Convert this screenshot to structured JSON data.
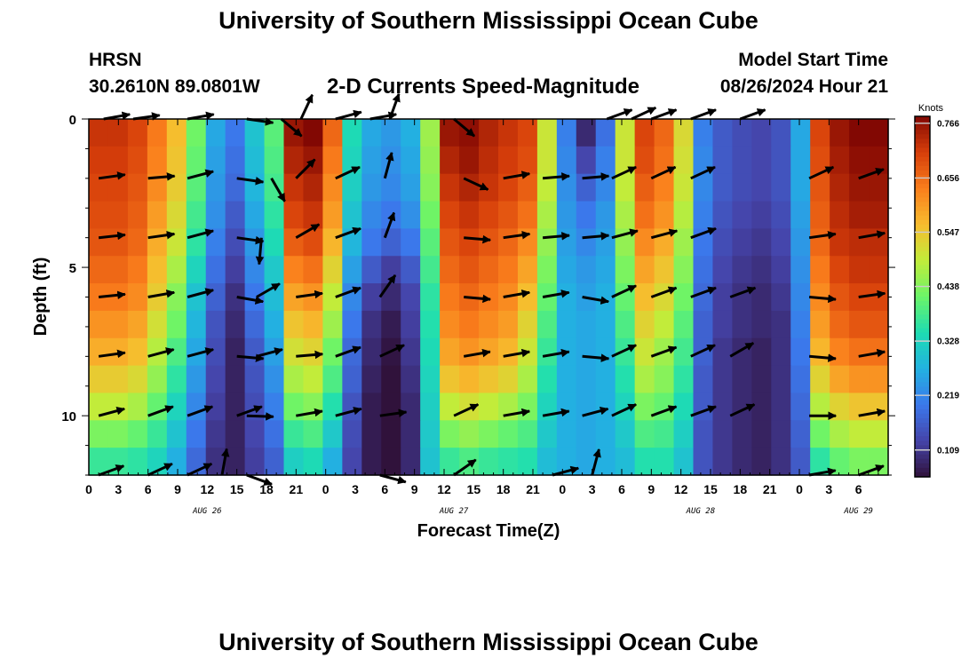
{
  "header": {
    "title": "University of Southern Mississippi Ocean Cube",
    "station": "HRSN",
    "coordinates": "30.2610N  89.0801W",
    "chart_title": "2-D Currents Speed-Magnitude",
    "model_start_label": "Model Start Time",
    "model_start_value": "08/26/2024 Hour 21"
  },
  "footer": {
    "title": "University of Southern Mississippi Ocean Cube"
  },
  "colors": {
    "background": "#ffffff",
    "arrow": "#000000"
  },
  "chart_data": {
    "type": "heatmap",
    "title": "2-D Currents Speed-Magnitude",
    "xlabel": "Forecast Time(Z)",
    "ylabel": "Depth (ft)",
    "x_range_hours": [
      0,
      81
    ],
    "y_range_ft": [
      0,
      12
    ],
    "x_tick_labels": [
      "0",
      "3",
      "6",
      "9",
      "12",
      "15",
      "18",
      "21",
      "0",
      "3",
      "6",
      "9",
      "12",
      "15",
      "18",
      "21",
      "0",
      "3",
      "6",
      "9",
      "12",
      "15",
      "18",
      "21",
      "0",
      "3",
      "6"
    ],
    "y_ticks": [
      0,
      5,
      10
    ],
    "date_labels": [
      {
        "text": "AUG 26",
        "hour": 12
      },
      {
        "text": "AUG 27",
        "hour": 37
      },
      {
        "text": "AUG 28",
        "hour": 62
      },
      {
        "text": "AUG 29",
        "hour": 78
      }
    ],
    "colorbar": {
      "label": "Knots",
      "min": 0.055,
      "max": 0.78,
      "ticks": [
        "0.766",
        "0.656",
        "0.547",
        "0.438",
        "0.328",
        "0.219",
        "0.109"
      ]
    },
    "depth_rows": [
      0,
      1,
      2,
      3,
      4,
      5,
      6,
      7,
      8,
      9,
      10,
      11,
      12
    ],
    "time_columns": [
      0,
      2,
      4,
      6,
      8,
      10,
      12,
      14,
      16,
      18,
      20,
      22,
      24,
      26,
      28,
      30,
      32,
      34,
      36,
      38,
      40,
      42,
      44,
      46,
      48,
      50,
      52,
      54,
      56,
      58,
      60,
      62,
      64,
      66,
      68,
      70,
      72,
      74,
      76,
      78,
      80
    ],
    "speed": [
      [
        0.72,
        0.72,
        0.7,
        0.64,
        0.56,
        0.42,
        0.26,
        0.2,
        0.3,
        0.4,
        0.76,
        0.78,
        0.66,
        0.34,
        0.26,
        0.24,
        0.27,
        0.46,
        0.76,
        0.77,
        0.74,
        0.72,
        0.7,
        0.5,
        0.21,
        0.09,
        0.19,
        0.5,
        0.7,
        0.66,
        0.52,
        0.21,
        0.16,
        0.14,
        0.13,
        0.15,
        0.26,
        0.7,
        0.76,
        0.78,
        0.78
      ],
      [
        0.71,
        0.71,
        0.69,
        0.63,
        0.55,
        0.41,
        0.25,
        0.19,
        0.29,
        0.39,
        0.74,
        0.76,
        0.64,
        0.33,
        0.25,
        0.23,
        0.26,
        0.45,
        0.74,
        0.76,
        0.73,
        0.71,
        0.69,
        0.5,
        0.22,
        0.13,
        0.21,
        0.5,
        0.69,
        0.65,
        0.51,
        0.22,
        0.16,
        0.14,
        0.13,
        0.15,
        0.26,
        0.69,
        0.75,
        0.77,
        0.77
      ],
      [
        0.7,
        0.7,
        0.68,
        0.62,
        0.54,
        0.4,
        0.24,
        0.18,
        0.28,
        0.38,
        0.72,
        0.74,
        0.62,
        0.32,
        0.24,
        0.22,
        0.25,
        0.44,
        0.72,
        0.74,
        0.72,
        0.7,
        0.67,
        0.49,
        0.23,
        0.17,
        0.22,
        0.49,
        0.67,
        0.63,
        0.5,
        0.22,
        0.16,
        0.14,
        0.13,
        0.15,
        0.26,
        0.68,
        0.74,
        0.76,
        0.76
      ],
      [
        0.69,
        0.69,
        0.67,
        0.6,
        0.52,
        0.38,
        0.23,
        0.16,
        0.26,
        0.36,
        0.7,
        0.72,
        0.6,
        0.3,
        0.22,
        0.2,
        0.23,
        0.42,
        0.7,
        0.72,
        0.7,
        0.68,
        0.65,
        0.47,
        0.24,
        0.2,
        0.24,
        0.47,
        0.65,
        0.61,
        0.48,
        0.21,
        0.15,
        0.13,
        0.12,
        0.14,
        0.25,
        0.67,
        0.73,
        0.75,
        0.75
      ],
      [
        0.68,
        0.68,
        0.66,
        0.58,
        0.5,
        0.36,
        0.21,
        0.14,
        0.24,
        0.34,
        0.67,
        0.69,
        0.57,
        0.28,
        0.2,
        0.17,
        0.2,
        0.4,
        0.68,
        0.7,
        0.68,
        0.66,
        0.62,
        0.45,
        0.25,
        0.22,
        0.25,
        0.45,
        0.62,
        0.58,
        0.46,
        0.2,
        0.14,
        0.12,
        0.11,
        0.13,
        0.24,
        0.66,
        0.72,
        0.73,
        0.73
      ],
      [
        0.66,
        0.66,
        0.64,
        0.56,
        0.47,
        0.33,
        0.19,
        0.12,
        0.22,
        0.31,
        0.63,
        0.65,
        0.53,
        0.25,
        0.16,
        0.12,
        0.16,
        0.38,
        0.66,
        0.68,
        0.66,
        0.64,
        0.59,
        0.43,
        0.26,
        0.24,
        0.26,
        0.43,
        0.59,
        0.55,
        0.44,
        0.19,
        0.13,
        0.11,
        0.1,
        0.12,
        0.23,
        0.64,
        0.7,
        0.72,
        0.72
      ],
      [
        0.64,
        0.64,
        0.62,
        0.54,
        0.44,
        0.3,
        0.17,
        0.1,
        0.2,
        0.29,
        0.59,
        0.61,
        0.49,
        0.22,
        0.12,
        0.09,
        0.13,
        0.36,
        0.64,
        0.66,
        0.64,
        0.62,
        0.56,
        0.41,
        0.27,
        0.25,
        0.27,
        0.41,
        0.56,
        0.52,
        0.42,
        0.18,
        0.12,
        0.1,
        0.09,
        0.11,
        0.22,
        0.62,
        0.68,
        0.7,
        0.7
      ],
      [
        0.61,
        0.61,
        0.59,
        0.51,
        0.42,
        0.28,
        0.15,
        0.09,
        0.18,
        0.27,
        0.55,
        0.57,
        0.46,
        0.2,
        0.1,
        0.07,
        0.12,
        0.35,
        0.62,
        0.64,
        0.62,
        0.6,
        0.53,
        0.39,
        0.27,
        0.26,
        0.27,
        0.39,
        0.53,
        0.49,
        0.4,
        0.17,
        0.12,
        0.1,
        0.09,
        0.1,
        0.21,
        0.6,
        0.66,
        0.68,
        0.68
      ],
      [
        0.58,
        0.58,
        0.56,
        0.48,
        0.39,
        0.26,
        0.14,
        0.08,
        0.16,
        0.25,
        0.51,
        0.53,
        0.42,
        0.18,
        0.09,
        0.06,
        0.11,
        0.34,
        0.59,
        0.61,
        0.59,
        0.57,
        0.5,
        0.37,
        0.27,
        0.26,
        0.27,
        0.37,
        0.5,
        0.46,
        0.38,
        0.17,
        0.11,
        0.09,
        0.08,
        0.1,
        0.2,
        0.57,
        0.63,
        0.65,
        0.65
      ],
      [
        0.54,
        0.54,
        0.52,
        0.45,
        0.36,
        0.24,
        0.13,
        0.08,
        0.15,
        0.23,
        0.47,
        0.49,
        0.39,
        0.17,
        0.08,
        0.05,
        0.1,
        0.33,
        0.55,
        0.57,
        0.55,
        0.53,
        0.47,
        0.35,
        0.27,
        0.26,
        0.27,
        0.35,
        0.47,
        0.44,
        0.36,
        0.16,
        0.11,
        0.09,
        0.08,
        0.1,
        0.19,
        0.53,
        0.59,
        0.61,
        0.61
      ],
      [
        0.49,
        0.49,
        0.47,
        0.41,
        0.33,
        0.22,
        0.12,
        0.08,
        0.14,
        0.21,
        0.42,
        0.44,
        0.35,
        0.15,
        0.07,
        0.05,
        0.09,
        0.32,
        0.49,
        0.51,
        0.49,
        0.47,
        0.43,
        0.33,
        0.27,
        0.26,
        0.27,
        0.33,
        0.43,
        0.41,
        0.34,
        0.16,
        0.11,
        0.09,
        0.08,
        0.1,
        0.18,
        0.48,
        0.53,
        0.55,
        0.55
      ],
      [
        0.43,
        0.43,
        0.41,
        0.37,
        0.3,
        0.2,
        0.11,
        0.08,
        0.13,
        0.19,
        0.37,
        0.39,
        0.31,
        0.14,
        0.07,
        0.05,
        0.09,
        0.31,
        0.43,
        0.45,
        0.43,
        0.41,
        0.39,
        0.31,
        0.27,
        0.26,
        0.27,
        0.31,
        0.39,
        0.38,
        0.32,
        0.15,
        0.11,
        0.09,
        0.08,
        0.1,
        0.17,
        0.42,
        0.47,
        0.49,
        0.49
      ],
      [
        0.37,
        0.37,
        0.36,
        0.33,
        0.27,
        0.18,
        0.1,
        0.08,
        0.12,
        0.17,
        0.32,
        0.34,
        0.27,
        0.13,
        0.07,
        0.05,
        0.09,
        0.3,
        0.37,
        0.39,
        0.37,
        0.36,
        0.35,
        0.29,
        0.27,
        0.26,
        0.27,
        0.29,
        0.35,
        0.35,
        0.3,
        0.15,
        0.11,
        0.09,
        0.08,
        0.1,
        0.16,
        0.36,
        0.41,
        0.43,
        0.43
      ]
    ],
    "vectors": [
      {
        "t": 1.5,
        "d": 0,
        "a": -10
      },
      {
        "t": 4.5,
        "d": 0,
        "a": -8
      },
      {
        "t": 10,
        "d": 0,
        "a": -10
      },
      {
        "t": 16,
        "d": 0,
        "a": 8
      },
      {
        "t": 19.5,
        "d": 0,
        "a": 40
      },
      {
        "t": 21.5,
        "d": 0,
        "a": -65
      },
      {
        "t": 25,
        "d": 0,
        "a": -15
      },
      {
        "t": 28.5,
        "d": 0,
        "a": -10
      },
      {
        "t": 30.5,
        "d": 0,
        "a": -70
      },
      {
        "t": 37,
        "d": 0,
        "a": 40
      },
      {
        "t": 52.5,
        "d": 0,
        "a": -20
      },
      {
        "t": 55,
        "d": 0,
        "a": -25
      },
      {
        "t": 57,
        "d": 0,
        "a": -20
      },
      {
        "t": 61,
        "d": 0,
        "a": -20
      },
      {
        "t": 66,
        "d": 0,
        "a": -20
      },
      {
        "t": 1,
        "d": 2,
        "a": -8
      },
      {
        "t": 6,
        "d": 2,
        "a": -5
      },
      {
        "t": 10,
        "d": 2,
        "a": -15
      },
      {
        "t": 15,
        "d": 2,
        "a": 8
      },
      {
        "t": 18.5,
        "d": 2,
        "a": 60
      },
      {
        "t": 21,
        "d": 2,
        "a": -45
      },
      {
        "t": 25,
        "d": 2,
        "a": -25
      },
      {
        "t": 30,
        "d": 2,
        "a": -75
      },
      {
        "t": 38,
        "d": 2,
        "a": 25
      },
      {
        "t": 42,
        "d": 2,
        "a": -10
      },
      {
        "t": 46,
        "d": 2,
        "a": -5
      },
      {
        "t": 50,
        "d": 2,
        "a": -5
      },
      {
        "t": 53,
        "d": 2,
        "a": -25
      },
      {
        "t": 57,
        "d": 2,
        "a": -25
      },
      {
        "t": 61,
        "d": 2,
        "a": -25
      },
      {
        "t": 73,
        "d": 2,
        "a": -25
      },
      {
        "t": 78,
        "d": 2,
        "a": -20
      },
      {
        "t": 1,
        "d": 4,
        "a": -6
      },
      {
        "t": 6,
        "d": 4,
        "a": -8
      },
      {
        "t": 10,
        "d": 4,
        "a": -15
      },
      {
        "t": 15,
        "d": 4,
        "a": 8
      },
      {
        "t": 17.5,
        "d": 4,
        "a": 95
      },
      {
        "t": 21,
        "d": 4,
        "a": -30
      },
      {
        "t": 25,
        "d": 4,
        "a": -20
      },
      {
        "t": 30,
        "d": 4,
        "a": -70
      },
      {
        "t": 38,
        "d": 4,
        "a": 5
      },
      {
        "t": 42,
        "d": 4,
        "a": -8
      },
      {
        "t": 46,
        "d": 4,
        "a": -5
      },
      {
        "t": 50,
        "d": 4,
        "a": -5
      },
      {
        "t": 53,
        "d": 4,
        "a": -15
      },
      {
        "t": 57,
        "d": 4,
        "a": -15
      },
      {
        "t": 61,
        "d": 4,
        "a": -20
      },
      {
        "t": 73,
        "d": 4,
        "a": -8
      },
      {
        "t": 78,
        "d": 4,
        "a": -10
      },
      {
        "t": 1,
        "d": 6,
        "a": -6
      },
      {
        "t": 6,
        "d": 6,
        "a": -10
      },
      {
        "t": 10,
        "d": 6,
        "a": -15
      },
      {
        "t": 15,
        "d": 6,
        "a": 10
      },
      {
        "t": 17,
        "d": 6,
        "a": -30
      },
      {
        "t": 21,
        "d": 6,
        "a": -8
      },
      {
        "t": 25,
        "d": 6,
        "a": -20
      },
      {
        "t": 29.5,
        "d": 6,
        "a": -55
      },
      {
        "t": 38,
        "d": 6,
        "a": 5
      },
      {
        "t": 42,
        "d": 6,
        "a": -10
      },
      {
        "t": 46,
        "d": 6,
        "a": -10
      },
      {
        "t": 50,
        "d": 6,
        "a": 10
      },
      {
        "t": 53,
        "d": 6,
        "a": -25
      },
      {
        "t": 57,
        "d": 6,
        "a": -20
      },
      {
        "t": 61,
        "d": 6,
        "a": -20
      },
      {
        "t": 65,
        "d": 6,
        "a": -20
      },
      {
        "t": 73,
        "d": 6,
        "a": 5
      },
      {
        "t": 78,
        "d": 6,
        "a": -8
      },
      {
        "t": 1,
        "d": 8,
        "a": -8
      },
      {
        "t": 6,
        "d": 8,
        "a": -15
      },
      {
        "t": 10,
        "d": 8,
        "a": -15
      },
      {
        "t": 15,
        "d": 8,
        "a": 5
      },
      {
        "t": 17,
        "d": 8,
        "a": -15
      },
      {
        "t": 21,
        "d": 8,
        "a": -5
      },
      {
        "t": 25,
        "d": 8,
        "a": -20
      },
      {
        "t": 29.5,
        "d": 8,
        "a": -25
      },
      {
        "t": 38,
        "d": 8,
        "a": -10
      },
      {
        "t": 42,
        "d": 8,
        "a": -10
      },
      {
        "t": 46,
        "d": 8,
        "a": -10
      },
      {
        "t": 50,
        "d": 8,
        "a": 5
      },
      {
        "t": 53,
        "d": 8,
        "a": -25
      },
      {
        "t": 57,
        "d": 8,
        "a": -20
      },
      {
        "t": 61,
        "d": 8,
        "a": -25
      },
      {
        "t": 65,
        "d": 8,
        "a": -30
      },
      {
        "t": 73,
        "d": 8,
        "a": 5
      },
      {
        "t": 78,
        "d": 8,
        "a": -10
      },
      {
        "t": 1,
        "d": 10,
        "a": -15
      },
      {
        "t": 6,
        "d": 10,
        "a": -20
      },
      {
        "t": 10,
        "d": 10,
        "a": -20
      },
      {
        "t": 15,
        "d": 10,
        "a": -20
      },
      {
        "t": 16,
        "d": 10,
        "a": 2
      },
      {
        "t": 21,
        "d": 10,
        "a": -10
      },
      {
        "t": 25,
        "d": 10,
        "a": -15
      },
      {
        "t": 29.5,
        "d": 10,
        "a": -8
      },
      {
        "t": 37,
        "d": 10,
        "a": -25
      },
      {
        "t": 42,
        "d": 10,
        "a": -10
      },
      {
        "t": 46,
        "d": 10,
        "a": -10
      },
      {
        "t": 50,
        "d": 10,
        "a": -15
      },
      {
        "t": 53,
        "d": 10,
        "a": -25
      },
      {
        "t": 57,
        "d": 10,
        "a": -20
      },
      {
        "t": 61,
        "d": 10,
        "a": -20
      },
      {
        "t": 65,
        "d": 10,
        "a": -25
      },
      {
        "t": 73,
        "d": 10,
        "a": 0
      },
      {
        "t": 78,
        "d": 10,
        "a": -10
      },
      {
        "t": 1,
        "d": 12,
        "a": -20
      },
      {
        "t": 6,
        "d": 12,
        "a": -25
      },
      {
        "t": 10,
        "d": 12,
        "a": -25
      },
      {
        "t": 13.5,
        "d": 12,
        "a": -80
      },
      {
        "t": 16,
        "d": 12,
        "a": 20
      },
      {
        "t": 29.5,
        "d": 12,
        "a": 15
      },
      {
        "t": 37,
        "d": 12,
        "a": -35
      },
      {
        "t": 47,
        "d": 12,
        "a": -15
      },
      {
        "t": 51,
        "d": 12,
        "a": -75
      },
      {
        "t": 73,
        "d": 12,
        "a": -10
      },
      {
        "t": 78,
        "d": 12,
        "a": -20
      }
    ]
  }
}
